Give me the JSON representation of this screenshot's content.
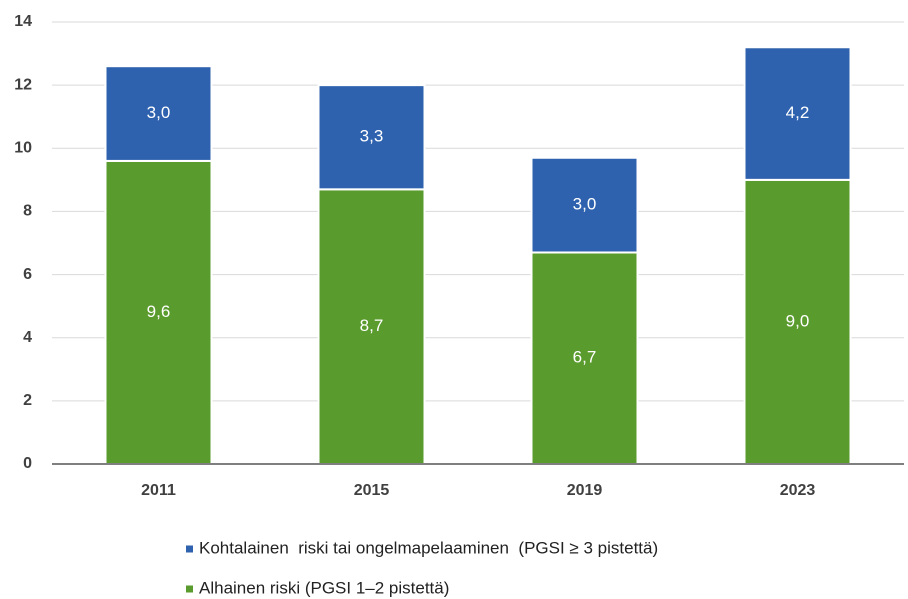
{
  "chart_data": {
    "type": "stacked_bar",
    "categories": [
      "2011",
      "2015",
      "2019",
      "2023"
    ],
    "series": [
      {
        "name": "Alhainen riski (PGSI 1–2 pistettä)",
        "color": "#5a9b2e",
        "values": [
          9.6,
          8.7,
          6.7,
          9.0
        ],
        "value_labels": [
          "9,6",
          "8,7",
          "6,7",
          "9,0"
        ]
      },
      {
        "name": "Kohtalainen  riski tai ongelmapelaaminen  (PGSI ≥ 3 pistettä)",
        "color": "#2e62ae",
        "values": [
          3.0,
          3.3,
          3.0,
          4.2
        ],
        "value_labels": [
          "3,0",
          "3,3",
          "3,0",
          "4,2"
        ]
      }
    ],
    "ylim": [
      0,
      14
    ],
    "yticks": [
      0,
      2,
      4,
      6,
      8,
      10,
      12,
      14
    ],
    "grid": true,
    "legend": "bottom"
  }
}
